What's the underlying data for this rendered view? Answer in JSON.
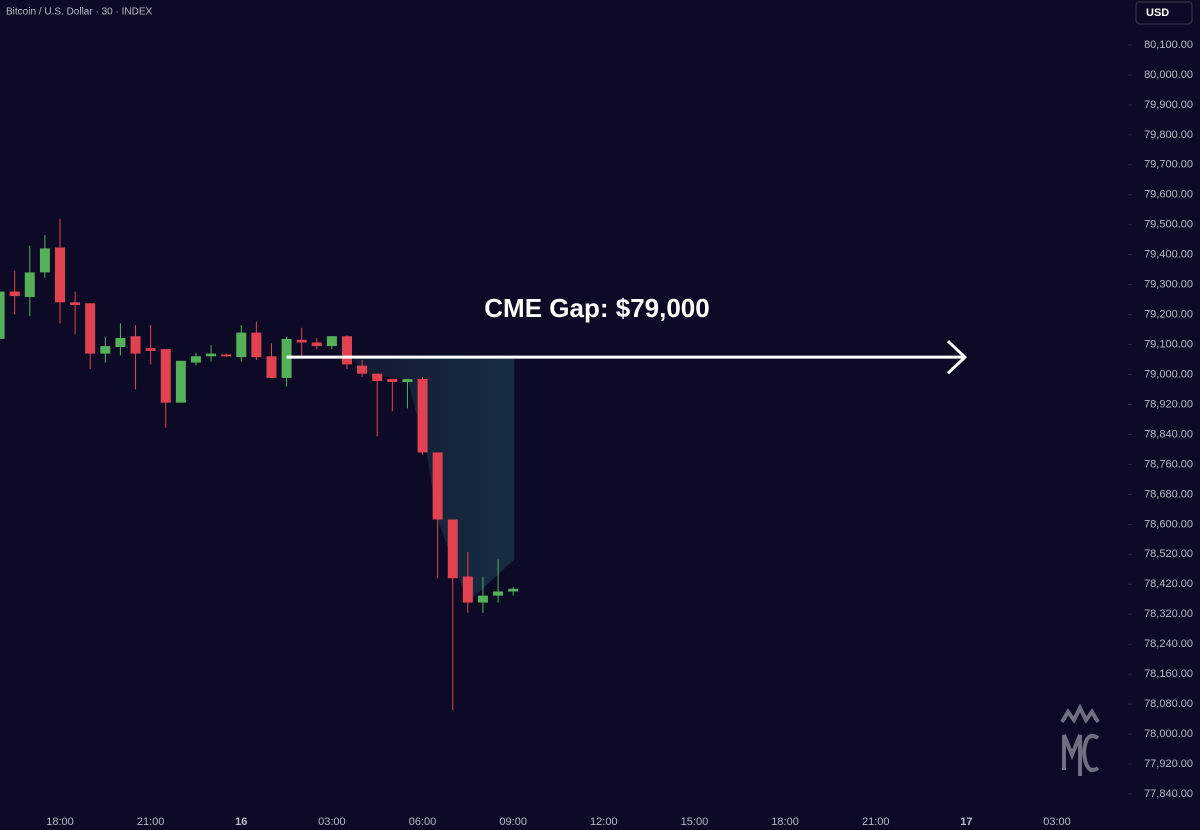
{
  "chart_data": {
    "type": "candlestick",
    "title": "Bitcoin / U.S. Dollar · 30 · INDEX",
    "currency": "USD",
    "annotation": "CME Gap: $79,000",
    "up_color": "#55b05a",
    "down_color": "#e0434f",
    "categories": [
      null,
      null,
      null,
      null,
      "18:00",
      null,
      null,
      null,
      null,
      null,
      "21:00",
      null,
      null,
      null,
      null,
      null,
      "16",
      null,
      null,
      null,
      null,
      null,
      "03:00",
      null,
      null,
      null,
      null,
      null,
      "06:00",
      null,
      null,
      null,
      null,
      null,
      "09:00",
      null,
      null,
      null,
      null,
      null,
      "12:00",
      null,
      null,
      null,
      null,
      null,
      "15:00",
      null,
      null,
      null,
      null,
      null,
      "18:00",
      null,
      null,
      null,
      null,
      null,
      "21:00",
      null,
      null,
      null,
      null,
      null,
      "17",
      null,
      null,
      null,
      null,
      null,
      "03:00",
      null
    ],
    "open": [
      79119,
      79277,
      79259,
      79341,
      79424,
      79241,
      79238,
      79070,
      79092,
      79128,
      79088,
      79085,
      78925,
      79040,
      79061,
      79067,
      79058,
      79140,
      79061,
      78991,
      79116,
      79107,
      79095,
      79128,
      79030,
      79003,
      78988,
      78980,
      78988,
      78792,
      78613,
      78446,
      78359,
      78382,
      78396,
      null,
      null,
      null,
      null,
      null,
      null,
      null,
      null,
      null,
      null,
      null,
      null,
      null,
      null,
      null,
      null,
      null,
      null,
      null,
      null,
      null,
      null,
      null,
      null,
      null,
      null,
      null,
      null,
      null,
      null,
      null,
      null,
      null,
      null,
      null,
      null,
      null
    ],
    "high": [
      79277,
      79345,
      79430,
      79466,
      79521,
      79277,
      79238,
      79125,
      79171,
      79165,
      79165,
      79085,
      79046,
      79073,
      79098,
      79070,
      79165,
      79177,
      79104,
      79125,
      79156,
      79122,
      79128,
      79131,
      79049,
      79003,
      78988,
      78988,
      78994,
      78792,
      78613,
      78526,
      78446,
      78503,
      78411,
      null,
      null,
      null,
      null,
      null,
      null,
      null,
      null,
      null,
      null,
      null,
      null,
      null,
      null,
      null,
      null,
      null,
      null,
      null,
      null,
      null,
      null,
      null,
      null,
      null,
      null,
      null,
      null,
      null,
      null,
      null,
      null,
      null,
      null,
      null,
      null,
      null
    ],
    "low": [
      79119,
      79201,
      79195,
      79323,
      79171,
      79134,
      79018,
      79040,
      79064,
      78960,
      79034,
      78858,
      78925,
      79030,
      79043,
      79058,
      79043,
      79049,
      78991,
      78968,
      79055,
      79085,
      79085,
      79018,
      78994,
      78835,
      78902,
      78910,
      78786,
      78440,
      78064,
      78324,
      78324,
      78359,
      78382,
      null,
      null,
      null,
      null,
      null,
      null,
      null,
      null,
      null,
      null,
      null,
      null,
      null,
      null,
      null,
      null,
      null,
      null,
      null,
      null,
      null,
      null,
      null,
      null,
      null,
      null,
      null,
      null,
      null,
      null,
      null,
      null,
      null,
      null,
      null,
      null,
      null
    ],
    "close": [
      79277,
      79262,
      79341,
      79421,
      79241,
      79232,
      79070,
      79095,
      79122,
      79070,
      79079,
      78925,
      79046,
      79061,
      79070,
      79061,
      79140,
      79058,
      78991,
      79119,
      79107,
      79095,
      79128,
      79034,
      79003,
      78983,
      78980,
      78988,
      78792,
      78613,
      78440,
      78359,
      78382,
      78396,
      78405,
      null,
      null,
      null,
      null,
      null,
      null,
      null,
      null,
      null,
      null,
      null,
      null,
      null,
      null,
      null,
      null,
      null,
      null,
      null,
      null,
      null,
      null,
      null,
      null,
      null,
      null,
      null,
      null,
      null,
      null,
      null,
      null,
      null,
      null,
      null,
      null,
      null
    ],
    "ylim": [
      77810,
      80250
    ],
    "yticks": [
      {
        "value": 80100,
        "label": "80,100.00"
      },
      {
        "value": 80000,
        "label": "80,000.00"
      },
      {
        "value": 79900,
        "label": "79,900.00"
      },
      {
        "value": 79800,
        "label": "79,800.00"
      },
      {
        "value": 79700,
        "label": "79,700.00"
      },
      {
        "value": 79600,
        "label": "79,600.00"
      },
      {
        "value": 79500,
        "label": "79,500.00"
      },
      {
        "value": 79400,
        "label": "79,400.00"
      },
      {
        "value": 79300,
        "label": "79,300.00"
      },
      {
        "value": 79200,
        "label": "79,200.00"
      },
      {
        "value": 79100,
        "label": "79,100.00"
      },
      {
        "value": 79000,
        "label": "79,000.00"
      },
      {
        "value": 78920,
        "label": "78,920.00"
      },
      {
        "value": 78840,
        "label": "78,840.00"
      },
      {
        "value": 78760,
        "label": "78,760.00"
      },
      {
        "value": 78680,
        "label": "78,680.00"
      },
      {
        "value": 78600,
        "label": "78,600.00"
      },
      {
        "value": 78520,
        "label": "78,520.00"
      },
      {
        "value": 78420,
        "label": "78,420.00"
      },
      {
        "value": 78320,
        "label": "78,320.00"
      },
      {
        "value": 78240,
        "label": "78,240.00"
      },
      {
        "value": 78160,
        "label": "78,160.00"
      },
      {
        "value": 78080,
        "label": "78,080.00"
      },
      {
        "value": 78000,
        "label": "78,000.00"
      },
      {
        "value": 77920,
        "label": "77,920.00"
      },
      {
        "value": 77840,
        "label": "77,840.00"
      }
    ]
  }
}
